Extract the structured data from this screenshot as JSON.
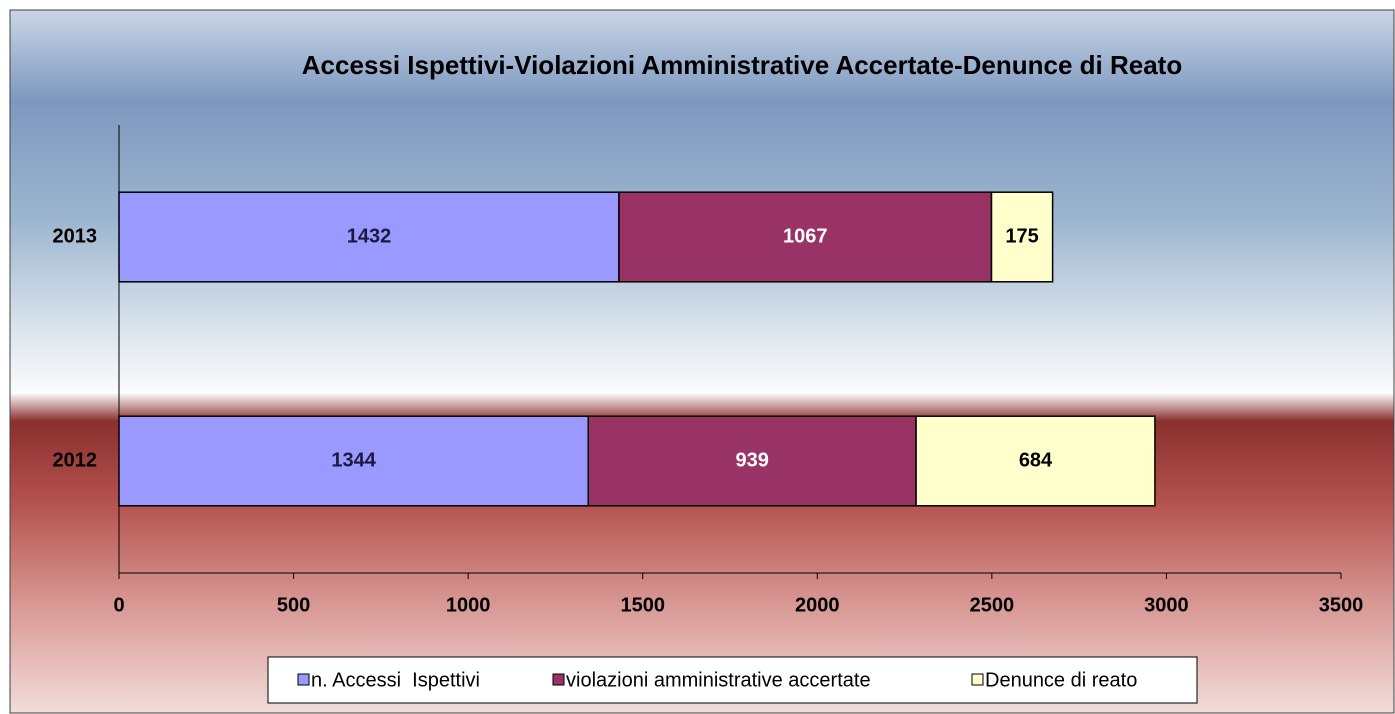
{
  "chart_data": {
    "type": "stacked_barh",
    "title": "Accessi Ispettivi-Violazioni Amministrative Accertate-Denunce di Reato",
    "categories": [
      "2013",
      "2012"
    ],
    "series": [
      {
        "name": "n. Accessi  Ispettivi",
        "color": "#9999ff",
        "label_color": "#1a1a40",
        "values": [
          1432,
          1344
        ]
      },
      {
        "name": "violazioni amministrative accertate",
        "color": "#993366",
        "label_color": "#ffffff",
        "values": [
          1067,
          939
        ]
      },
      {
        "name": "Denunce di reato",
        "color": "#ffffcc",
        "label_color": "#000000",
        "values": [
          175,
          684
        ]
      }
    ],
    "xlim": [
      0,
      3500
    ],
    "xticks": [
      0,
      500,
      1000,
      1500,
      2000,
      2500,
      3000,
      3500
    ],
    "legend": "bottom"
  }
}
